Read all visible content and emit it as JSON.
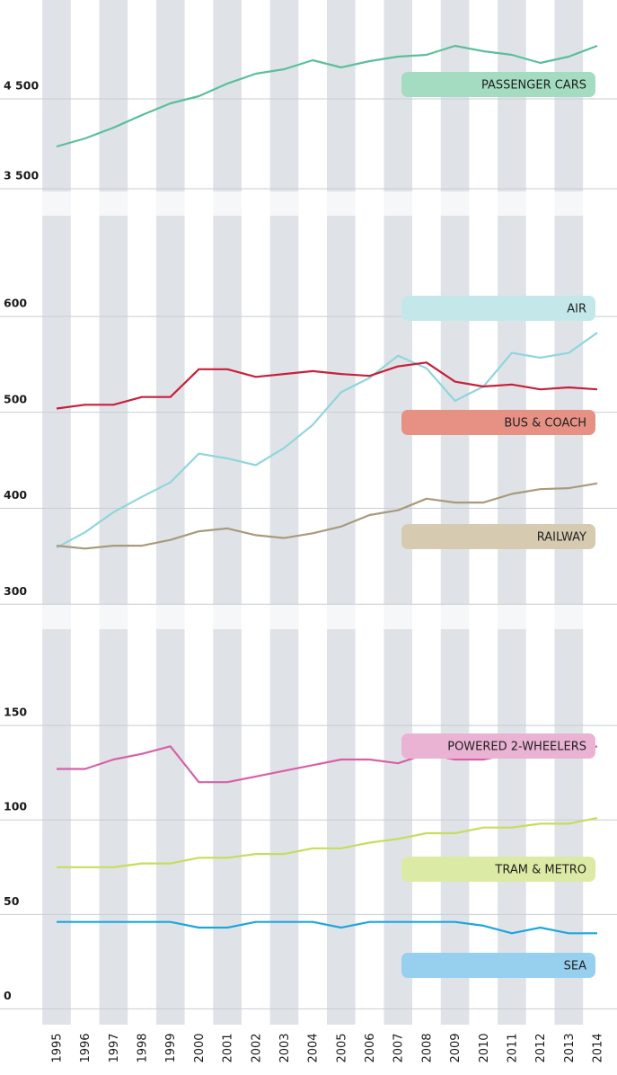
{
  "chart_data": [
    {
      "type": "line",
      "ylim": [
        3200,
        5600
      ],
      "yticks": [
        {
          "value": 4500,
          "label": "4 500"
        },
        {
          "value": 3500,
          "label": "3 500"
        }
      ],
      "series": [
        {
          "name": "PASSENGER CARS",
          "color": "#5bbf9a",
          "legend_color": "#a3dcc0",
          "values": [
            3970,
            4060,
            4180,
            4320,
            4450,
            4530,
            4670,
            4780,
            4830,
            4930,
            4850,
            4920,
            4970,
            4990,
            5090,
            5030,
            4990,
            4900,
            4970,
            5090
          ]
        }
      ]
    },
    {
      "type": "line",
      "ylim": [
        274,
        705
      ],
      "yticks": [
        600,
        500,
        400,
        300
      ],
      "series": [
        {
          "name": "AIR",
          "color": "#8fd6dc",
          "legend_color": "#c4e8ea",
          "values": [
            359,
            375,
            396,
            412,
            427,
            457,
            452,
            445,
            463,
            487,
            521,
            536,
            559,
            546,
            512,
            527,
            562,
            557,
            562,
            583
          ]
        },
        {
          "name": "BUS & COACH",
          "color": "#c8203a",
          "legend_color": "#e69184",
          "values": [
            504,
            508,
            508,
            516,
            516,
            545,
            545,
            537,
            540,
            543,
            540,
            538,
            548,
            552,
            532,
            527,
            529,
            524,
            526,
            524
          ]
        },
        {
          "name": "RAILWAY",
          "color": "#a89a7d",
          "legend_color": "#d6cbb0",
          "values": [
            361,
            358,
            361,
            361,
            367,
            376,
            379,
            372,
            369,
            374,
            381,
            393,
            398,
            410,
            406,
            406,
            415,
            420,
            421,
            426
          ]
        }
      ]
    },
    {
      "type": "line",
      "ylim": [
        -6,
        201
      ],
      "yticks": [
        150,
        100,
        50,
        0
      ],
      "categories": [
        "1995",
        "1996",
        "1997",
        "1998",
        "1999",
        "2000",
        "2001",
        "2002",
        "2003",
        "2004",
        "2005",
        "2006",
        "2007",
        "2008",
        "2009",
        "2010",
        "2011",
        "2012",
        "2013",
        "2014"
      ],
      "series": [
        {
          "name": "POWERED 2-WHEELERS",
          "color": "#d860a8",
          "legend_color": "#eab3d4",
          "values": [
            127,
            127,
            132,
            135,
            139,
            120,
            120,
            123,
            126,
            129,
            132,
            132,
            130,
            135,
            132,
            132,
            135,
            135,
            135,
            139
          ]
        },
        {
          "name": "TRAM & METRO",
          "color": "#c6dd5c",
          "legend_color": "#dbeaa4",
          "values": [
            75,
            75,
            75,
            77,
            77,
            80,
            80,
            82,
            82,
            85,
            85,
            88,
            90,
            93,
            93,
            96,
            96,
            98,
            98,
            101
          ]
        },
        {
          "name": "SEA",
          "color": "#1ea6dc",
          "legend_color": "#97cfef",
          "values": [
            46,
            46,
            46,
            46,
            46,
            43,
            43,
            46,
            46,
            46,
            43,
            46,
            46,
            46,
            46,
            44,
            40,
            43,
            40,
            40
          ]
        }
      ]
    }
  ]
}
